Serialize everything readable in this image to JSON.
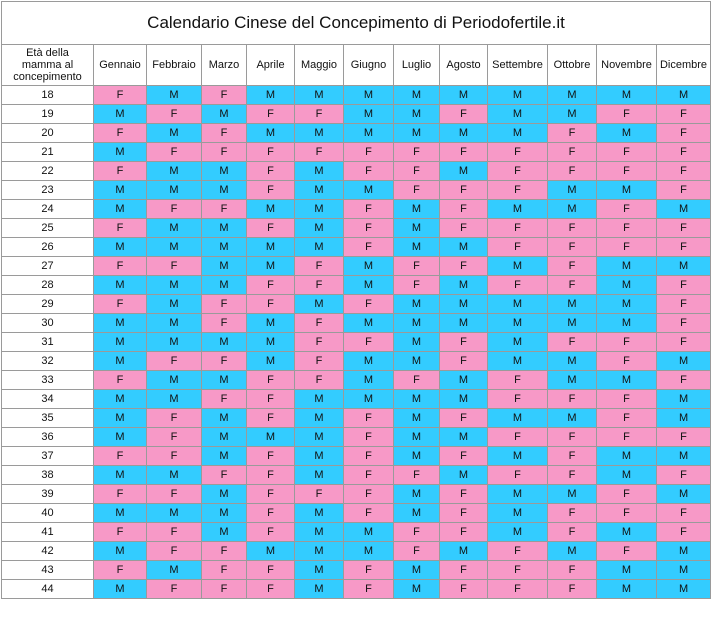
{
  "title": "Calendario Cinese del Concepimento di Periodofertile.it",
  "header": {
    "corner": "Età della mamma al concepimento",
    "months": [
      "Gennaio",
      "Febbraio",
      "Marzo",
      "Aprile",
      "Maggio",
      "Giugno",
      "Luglio",
      "Agosto",
      "Settembre",
      "Ottobre",
      "Novembre",
      "Dicembre"
    ]
  },
  "rows": [
    {
      "age": 18,
      "cells": [
        "F",
        "M",
        "F",
        "M",
        "M",
        "M",
        "M",
        "M",
        "M",
        "M",
        "M",
        "M"
      ]
    },
    {
      "age": 19,
      "cells": [
        "M",
        "F",
        "M",
        "F",
        "F",
        "M",
        "M",
        "F",
        "M",
        "M",
        "F",
        "F"
      ]
    },
    {
      "age": 20,
      "cells": [
        "F",
        "M",
        "F",
        "M",
        "M",
        "M",
        "M",
        "M",
        "M",
        "F",
        "M",
        "F"
      ]
    },
    {
      "age": 21,
      "cells": [
        "M",
        "F",
        "F",
        "F",
        "F",
        "F",
        "F",
        "F",
        "F",
        "F",
        "F",
        "F"
      ]
    },
    {
      "age": 22,
      "cells": [
        "F",
        "M",
        "M",
        "F",
        "M",
        "F",
        "F",
        "M",
        "F",
        "F",
        "F",
        "F"
      ]
    },
    {
      "age": 23,
      "cells": [
        "M",
        "M",
        "M",
        "F",
        "M",
        "M",
        "F",
        "F",
        "F",
        "M",
        "M",
        "F"
      ]
    },
    {
      "age": 24,
      "cells": [
        "M",
        "F",
        "F",
        "M",
        "M",
        "F",
        "M",
        "F",
        "M",
        "M",
        "F",
        "M"
      ]
    },
    {
      "age": 25,
      "cells": [
        "F",
        "M",
        "M",
        "F",
        "M",
        "F",
        "M",
        "F",
        "F",
        "F",
        "F",
        "F"
      ]
    },
    {
      "age": 26,
      "cells": [
        "M",
        "M",
        "M",
        "M",
        "M",
        "F",
        "M",
        "M",
        "F",
        "F",
        "F",
        "F"
      ]
    },
    {
      "age": 27,
      "cells": [
        "F",
        "F",
        "M",
        "M",
        "F",
        "M",
        "F",
        "F",
        "M",
        "F",
        "M",
        "M"
      ]
    },
    {
      "age": 28,
      "cells": [
        "M",
        "M",
        "M",
        "F",
        "F",
        "M",
        "F",
        "M",
        "F",
        "F",
        "M",
        "F"
      ]
    },
    {
      "age": 29,
      "cells": [
        "F",
        "M",
        "F",
        "F",
        "M",
        "F",
        "M",
        "M",
        "M",
        "M",
        "M",
        "F"
      ]
    },
    {
      "age": 30,
      "cells": [
        "M",
        "M",
        "F",
        "M",
        "F",
        "M",
        "M",
        "M",
        "M",
        "M",
        "M",
        "F"
      ]
    },
    {
      "age": 31,
      "cells": [
        "M",
        "M",
        "M",
        "M",
        "F",
        "F",
        "M",
        "F",
        "M",
        "F",
        "F",
        "F"
      ]
    },
    {
      "age": 32,
      "cells": [
        "M",
        "F",
        "F",
        "M",
        "F",
        "M",
        "M",
        "F",
        "M",
        "M",
        "F",
        "M"
      ]
    },
    {
      "age": 33,
      "cells": [
        "F",
        "M",
        "M",
        "F",
        "F",
        "M",
        "F",
        "M",
        "F",
        "M",
        "M",
        "F"
      ]
    },
    {
      "age": 34,
      "cells": [
        "M",
        "M",
        "F",
        "F",
        "M",
        "M",
        "M",
        "M",
        "F",
        "F",
        "F",
        "M"
      ]
    },
    {
      "age": 35,
      "cells": [
        "M",
        "F",
        "M",
        "F",
        "M",
        "F",
        "M",
        "F",
        "M",
        "M",
        "F",
        "M"
      ]
    },
    {
      "age": 36,
      "cells": [
        "M",
        "F",
        "M",
        "M",
        "M",
        "F",
        "M",
        "M",
        "F",
        "F",
        "F",
        "F"
      ]
    },
    {
      "age": 37,
      "cells": [
        "F",
        "F",
        "M",
        "F",
        "M",
        "F",
        "M",
        "F",
        "M",
        "F",
        "M",
        "M"
      ]
    },
    {
      "age": 38,
      "cells": [
        "M",
        "M",
        "F",
        "F",
        "M",
        "F",
        "F",
        "M",
        "F",
        "F",
        "M",
        "F"
      ]
    },
    {
      "age": 39,
      "cells": [
        "F",
        "F",
        "M",
        "F",
        "F",
        "F",
        "M",
        "F",
        "M",
        "M",
        "F",
        "M"
      ]
    },
    {
      "age": 40,
      "cells": [
        "M",
        "M",
        "M",
        "F",
        "M",
        "F",
        "M",
        "F",
        "M",
        "F",
        "F",
        "F"
      ]
    },
    {
      "age": 41,
      "cells": [
        "F",
        "F",
        "M",
        "F",
        "M",
        "M",
        "F",
        "F",
        "M",
        "F",
        "M",
        "F"
      ]
    },
    {
      "age": 42,
      "cells": [
        "M",
        "F",
        "F",
        "M",
        "M",
        "M",
        "F",
        "M",
        "F",
        "M",
        "F",
        "M"
      ]
    },
    {
      "age": 43,
      "cells": [
        "F",
        "M",
        "F",
        "F",
        "M",
        "F",
        "M",
        "F",
        "F",
        "F",
        "M",
        "M"
      ]
    },
    {
      "age": 44,
      "cells": [
        "M",
        "F",
        "F",
        "F",
        "M",
        "F",
        "M",
        "F",
        "F",
        "F",
        "M",
        "M"
      ]
    }
  ]
}
